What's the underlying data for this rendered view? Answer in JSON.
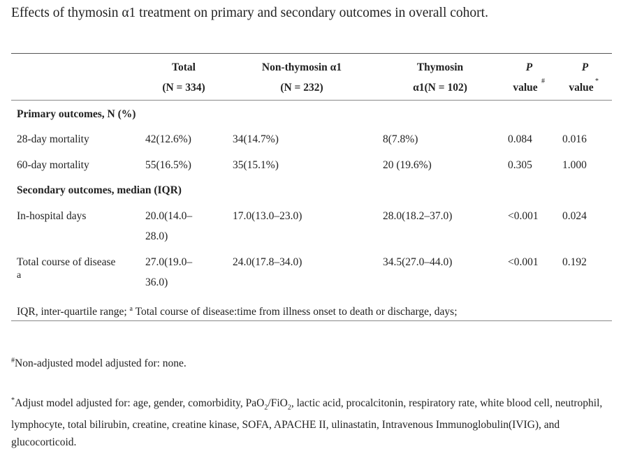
{
  "caption": "Effects of thymosin α1 treatment on primary and secondary outcomes in overall cohort.",
  "header": {
    "total_line1": "Total",
    "total_line2": "(N = 334)",
    "non_line1": "Non-thymosin α1",
    "non_line2": "(N = 232)",
    "thy_line1": "Thymosin",
    "thy_line2": "α1(N = 102)",
    "p1_line1": "P",
    "p1_line2": "value",
    "p1_mark": "#",
    "p2_line1": "P",
    "p2_line2": "value",
    "p2_mark": "*"
  },
  "groups": {
    "primary": "Primary outcomes, N (%)",
    "secondary": "Secondary outcomes, median (IQR)"
  },
  "rows": [
    {
      "label": "28-day mortality",
      "total": "42(12.6%)",
      "non": "34(14.7%)",
      "thy": "8(7.8%)",
      "p1": "0.084",
      "p2": "0.016"
    },
    {
      "label": "60-day mortality",
      "total": "55(16.5%)",
      "non": "35(15.1%)",
      "thy": "20 (19.6%)",
      "p1": "0.305",
      "p2": "1.000"
    },
    {
      "label": "In-hospital days",
      "total_l1": "20.0(14.0–",
      "total_l2": "28.0)",
      "non": "17.0(13.0–23.0)",
      "thy": "28.0(18.2–37.0)",
      "p1": "<0.001",
      "p2": "0.024"
    },
    {
      "label": "Total course of disease",
      "label_mark": "a",
      "total_l1": "27.0(19.0–",
      "total_l2": "36.0)",
      "non": "24.0(17.8–34.0)",
      "thy": "34.5(27.0–44.0)",
      "p1": "<0.001",
      "p2": "0.192"
    }
  ],
  "table_note": {
    "part1": "IQR, inter-quartile range;",
    "mark": "a",
    "part2": "Total course of disease:time from illness onset to death or discharge, days;"
  },
  "footnotes": {
    "fn1_mark": "#",
    "fn1_text": "Non-adjusted model adjusted for: none.",
    "fn2_mark": "*",
    "fn2_text_a": "Adjust model adjusted for: age, gender, comorbidity, PaO",
    "fn2_sub1": "2",
    "fn2_text_b": "/FiO",
    "fn2_sub2": "2",
    "fn2_text_c": ", lactic acid, procalcitonin, respiratory rate, white blood cell, neutrophil, lymphocyte, total bilirubin, creatine, creatine kinase, SOFA, APACHE II, ulinastatin, Intravenous Immunoglobulin(IVIG), and glucocorticoid."
  }
}
